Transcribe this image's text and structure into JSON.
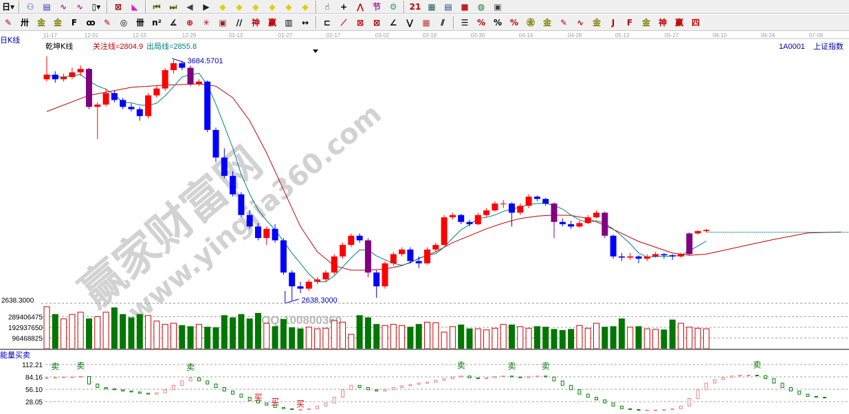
{
  "toolbar1": [
    {
      "icon": "period-day-icon",
      "glyph": "日▾",
      "color": "#000"
    },
    {
      "sep": true
    },
    {
      "icon": "indicator-icon",
      "glyph": "⚇",
      "color": "#2030c0"
    },
    {
      "icon": "notes-icon",
      "glyph": "▤",
      "color": "#2030c0"
    },
    {
      "icon": "ma3-icon",
      "glyph": "∿",
      "color": "#a020a0"
    },
    {
      "icon": "ma9-icon",
      "glyph": "∿",
      "color": "#c02080"
    },
    {
      "icon": "candle-type-icon",
      "glyph": "▯▾",
      "color": "#000"
    },
    {
      "sep": true
    },
    {
      "icon": "formula-icon",
      "glyph": "⊠",
      "color": "#a00000"
    },
    {
      "icon": "histogram-icon",
      "glyph": "◣",
      "color": "#e020c0"
    },
    {
      "sep": true
    },
    {
      "icon": "first-icon",
      "glyph": "⏮",
      "color": "#606000"
    },
    {
      "icon": "last-icon",
      "glyph": "⏭",
      "color": "#606000"
    },
    {
      "icon": "left-icon",
      "glyph": "◀",
      "color": "#404040"
    },
    {
      "icon": "right-icon",
      "glyph": "▶",
      "color": "#202020"
    },
    {
      "icon": "scroll-left-icon",
      "glyph": "◆",
      "color": "#e0d000"
    },
    {
      "icon": "scroll-right-icon",
      "glyph": "◆",
      "color": "#e0d000"
    },
    {
      "icon": "zoom-in-icon",
      "glyph": "◆",
      "color": "#e0d000"
    },
    {
      "icon": "zoom-out-icon",
      "glyph": "◆",
      "color": "#e0d000"
    },
    {
      "icon": "expand-icon",
      "glyph": "◆",
      "color": "#e0d000"
    },
    {
      "icon": "shrink-icon",
      "glyph": "◆",
      "color": "#e0d000"
    },
    {
      "sep": true
    },
    {
      "icon": "hand-icon",
      "glyph": "☝",
      "color": "#000"
    },
    {
      "icon": "crosshair-icon",
      "glyph": "+",
      "color": "#000"
    },
    {
      "icon": "trend-icon",
      "glyph": "⋀",
      "color": "#c00000"
    },
    {
      "icon": "section-icon",
      "glyph": "节",
      "color": "#a020a0"
    },
    {
      "icon": "spiral-icon",
      "glyph": "⚙",
      "color": "#20a080"
    },
    {
      "sep": true
    },
    {
      "icon": "calendar-icon",
      "glyph": "21",
      "color": "#c00000"
    },
    {
      "icon": "calculator-icon",
      "glyph": "▦",
      "color": "#206060"
    },
    {
      "icon": "report-icon",
      "glyph": "▤",
      "color": "#204080"
    },
    {
      "icon": "save-icon",
      "glyph": "■",
      "color": "#c02020"
    },
    {
      "icon": "network-icon",
      "glyph": "◍",
      "color": "#207020"
    },
    {
      "icon": "print-icon",
      "glyph": "▣",
      "color": "#404040"
    }
  ],
  "toolbar2": [
    {
      "icon": "pen-icon",
      "glyph": "✎",
      "color": "#c00000"
    },
    {
      "icon": "parallel-icon",
      "glyph": "卅",
      "color": "#000"
    },
    {
      "icon": "gold-icon",
      "glyph": "金",
      "color": "#808000"
    },
    {
      "icon": "gold2-icon",
      "glyph": "金",
      "color": "#808000"
    },
    {
      "icon": "fib-icon",
      "glyph": "F",
      "color": "#000"
    },
    {
      "icon": "wave-icon",
      "glyph": "ꝏ",
      "color": "#000"
    },
    {
      "icon": "draw-icon",
      "glyph": "✎",
      "color": "#c00000"
    },
    {
      "icon": "circle-icon",
      "glyph": "◎",
      "color": "#000"
    },
    {
      "icon": "lines-icon",
      "glyph": "卌",
      "color": "#000"
    },
    {
      "icon": "n2-icon",
      "glyph": "n²",
      "color": "#000"
    },
    {
      "icon": "angle-icon",
      "glyph": "∡",
      "color": "#000"
    },
    {
      "icon": "target-icon",
      "glyph": "⊕",
      "color": "#c00000"
    },
    {
      "icon": "radial-icon",
      "glyph": "✳",
      "color": "#c00000"
    },
    {
      "icon": "box-icon",
      "glyph": "▣",
      "color": "#a02020"
    },
    {
      "icon": "slash-icon",
      "glyph": "//",
      "color": "#000"
    },
    {
      "icon": "qian-icon",
      "glyph": "神",
      "color": "#c00000"
    },
    {
      "icon": "ying-icon",
      "glyph": "赢",
      "color": "#c00000"
    },
    {
      "icon": "grid-icon",
      "glyph": "▥",
      "color": "#000"
    },
    {
      "icon": "width-icon",
      "glyph": "↔",
      "color": "#000"
    },
    {
      "sep": true
    },
    {
      "icon": "rect-icon",
      "glyph": "⊏",
      "color": "#000"
    },
    {
      "icon": "fan-icon",
      "glyph": "⟋",
      "color": "#c00000"
    },
    {
      "icon": "fan2-icon",
      "glyph": "⊠",
      "color": "#c00000"
    },
    {
      "icon": "fan3-icon",
      "glyph": "⊠",
      "color": "#a00000"
    },
    {
      "icon": "fan4-icon",
      "glyph": "∠",
      "color": "#000"
    },
    {
      "icon": "zigzag-icon",
      "glyph": "⋁",
      "color": "#000"
    },
    {
      "icon": "gann-icon",
      "glyph": "▦",
      "color": "#c04040"
    },
    {
      "icon": "channel-icon",
      "glyph": "⫽",
      "color": "#000"
    },
    {
      "sep": true
    },
    {
      "icon": "ruler-icon",
      "glyph": "☰",
      "color": "#000"
    },
    {
      "icon": "pct-line-icon",
      "glyph": "%",
      "color": "#c00000"
    },
    {
      "icon": "percent-icon",
      "glyph": "%",
      "color": "#000"
    },
    {
      "icon": "pct-lines-icon",
      "glyph": "%",
      "color": "#c00000"
    },
    {
      "icon": "gold-circle-icon",
      "glyph": "㊎",
      "color": "#808000"
    },
    {
      "icon": "gold-lines-icon",
      "glyph": "金",
      "color": "#808000"
    },
    {
      "icon": "marker-icon",
      "glyph": "✎",
      "color": "#c00000"
    },
    {
      "icon": "sine-icon",
      "glyph": "∿",
      "color": "#c00000"
    },
    {
      "icon": "gold-bar-icon",
      "glyph": "金",
      "color": "#808000"
    },
    {
      "icon": "j-angle-icon",
      "glyph": "J",
      "color": "#c00000"
    },
    {
      "icon": "f-angle-icon",
      "glyph": "F",
      "color": "#c00000"
    },
    {
      "icon": "gold-angle-icon",
      "glyph": "金",
      "color": "#808000"
    },
    {
      "icon": "shen-angle-icon",
      "glyph": "神",
      "color": "#c00000"
    },
    {
      "icon": "ying-angle-icon",
      "glyph": "赢",
      "color": "#c00000"
    },
    {
      "icon": "si-angle-icon",
      "glyph": "四",
      "color": "#c00000"
    }
  ],
  "date_axis": [
    "11-17",
    "12-01",
    "12-15",
    "12-29",
    "01-13",
    "01-27",
    "02-17",
    "03-02",
    "03-16",
    "03-30",
    "04-14",
    "04-28",
    "05-13",
    "05-27",
    "06-10",
    "06-24",
    "07-08"
  ],
  "period_label": "日K线",
  "indicator_name": "乾坤K线",
  "focus_line": "关注线=2804.9",
  "exit_line": "出局线=2855.8",
  "stock": {
    "code": "1A0001",
    "name": "上证指数"
  },
  "watermark": {
    "site": "赢家财富网",
    "url": "www.yingjia360.com",
    "qq": "QQ:100800360"
  },
  "colors": {
    "up": "#ff0000",
    "down": "#0000ff",
    "signal": "#800080",
    "vol_up": "#cc0000",
    "vol_down": "#007700",
    "ma": "#008080",
    "long_ma": "#c00000"
  },
  "chart_data": [
    {
      "type": "candlestick",
      "high_label": "3684.5701",
      "low_label": "2638.3000",
      "ylim": [
        2638.3,
        3684.5701
      ],
      "candles_ohlc": [
        [
          3600,
          3700,
          3590,
          3620
        ],
        [
          3620,
          3635,
          3585,
          3600
        ],
        [
          3600,
          3625,
          3590,
          3610
        ],
        [
          3610,
          3650,
          3600,
          3630
        ],
        [
          3630,
          3660,
          3615,
          3645
        ],
        [
          3645,
          3650,
          3470,
          3480
        ],
        [
          3480,
          3500,
          3340,
          3490
        ],
        [
          3490,
          3560,
          3480,
          3540
        ],
        [
          3540,
          3550,
          3500,
          3510
        ],
        [
          3510,
          3520,
          3470,
          3480
        ],
        [
          3480,
          3495,
          3460,
          3470
        ],
        [
          3470,
          3480,
          3420,
          3440
        ],
        [
          3440,
          3540,
          3430,
          3530
        ],
        [
          3530,
          3570,
          3520,
          3560
        ],
        [
          3560,
          3650,
          3550,
          3640
        ],
        [
          3640,
          3684.57,
          3625,
          3670
        ],
        [
          3670,
          3680,
          3640,
          3650
        ],
        [
          3650,
          3660,
          3570,
          3580
        ],
        [
          3580,
          3600,
          3570,
          3590
        ],
        [
          3590,
          3595,
          3370,
          3380
        ],
        [
          3380,
          3390,
          3240,
          3260
        ],
        [
          3260,
          3300,
          3170,
          3180
        ],
        [
          3180,
          3200,
          3090,
          3100
        ],
        [
          3100,
          3110,
          3000,
          3010
        ],
        [
          3010,
          3030,
          2950,
          2960
        ],
        [
          2960,
          2975,
          2900,
          2910
        ],
        [
          2910,
          2960,
          2880,
          2950
        ],
        [
          2950,
          2970,
          2890,
          2900
        ],
        [
          2900,
          2910,
          2750,
          2760
        ],
        [
          2760,
          2770,
          2638.3,
          2700
        ],
        [
          2700,
          2720,
          2670,
          2690
        ],
        [
          2690,
          2730,
          2680,
          2720
        ],
        [
          2720,
          2740,
          2710,
          2730
        ],
        [
          2730,
          2770,
          2720,
          2760
        ],
        [
          2760,
          2840,
          2750,
          2830
        ],
        [
          2830,
          2890,
          2820,
          2880
        ],
        [
          2880,
          2930,
          2870,
          2920
        ],
        [
          2920,
          2930,
          2890,
          2900
        ],
        [
          2900,
          2910,
          2740,
          2760
        ],
        [
          2760,
          2770,
          2650,
          2700
        ],
        [
          2700,
          2810,
          2690,
          2800
        ],
        [
          2800,
          2850,
          2790,
          2840
        ],
        [
          2840,
          2870,
          2830,
          2860
        ],
        [
          2860,
          2870,
          2800,
          2810
        ],
        [
          2810,
          2830,
          2780,
          2800
        ],
        [
          2800,
          2870,
          2795,
          2860
        ],
        [
          2860,
          2890,
          2850,
          2880
        ],
        [
          2880,
          3010,
          2875,
          3000
        ],
        [
          3000,
          3020,
          2990,
          3010
        ],
        [
          3010,
          3015,
          2970,
          2980
        ],
        [
          2980,
          2990,
          2960,
          2970
        ],
        [
          2970,
          3020,
          2965,
          3010
        ],
        [
          3010,
          3040,
          3000,
          3030
        ],
        [
          3030,
          3070,
          3025,
          3060
        ],
        [
          3060,
          3075,
          3040,
          3060
        ],
        [
          3060,
          3065,
          2960,
          3020
        ],
        [
          3020,
          3060,
          3010,
          3050
        ],
        [
          3050,
          3100,
          3040,
          3090
        ],
        [
          3090,
          3095,
          3070,
          3080
        ],
        [
          3080,
          3085,
          3050,
          3060
        ],
        [
          3060,
          3065,
          2910,
          2980
        ],
        [
          2980,
          2995,
          2960,
          2970
        ],
        [
          2970,
          2985,
          2950,
          2960
        ],
        [
          2960,
          2985,
          2955,
          2975
        ],
        [
          2975,
          3010,
          2970,
          3000
        ],
        [
          3000,
          3030,
          2995,
          3020
        ],
        [
          3020,
          3025,
          2910,
          2920
        ],
        [
          2920,
          2925,
          2820,
          2830
        ],
        [
          2830,
          2845,
          2810,
          2825
        ],
        [
          2825,
          2845,
          2815,
          2830
        ],
        [
          2830,
          2835,
          2800,
          2820
        ],
        [
          2820,
          2840,
          2810,
          2830
        ],
        [
          2830,
          2850,
          2825,
          2840
        ],
        [
          2840,
          2845,
          2820,
          2835
        ],
        [
          2835,
          2840,
          2815,
          2830
        ],
        [
          2830,
          2845,
          2825,
          2840
        ],
        [
          2840,
          2935,
          2835,
          2930
        ],
        [
          2930,
          2945,
          2925,
          2940
        ],
        [
          2940,
          2950,
          2935,
          2945
        ]
      ],
      "signal_candles": [
        5,
        17,
        38,
        60,
        66,
        76
      ],
      "long_ma_points": [
        [
          0,
          3460
        ],
        [
          5,
          3530
        ],
        [
          10,
          3565
        ],
        [
          14,
          3575
        ],
        [
          18,
          3580
        ],
        [
          20,
          3570
        ],
        [
          22,
          3520
        ],
        [
          24,
          3420
        ],
        [
          26,
          3280
        ],
        [
          28,
          3120
        ],
        [
          30,
          2960
        ],
        [
          32,
          2850
        ],
        [
          34,
          2790
        ],
        [
          36,
          2770
        ],
        [
          38,
          2770
        ],
        [
          40,
          2775
        ],
        [
          42,
          2790
        ],
        [
          44,
          2820
        ],
        [
          46,
          2850
        ],
        [
          48,
          2890
        ],
        [
          50,
          2920
        ],
        [
          52,
          2950
        ],
        [
          54,
          2975
        ],
        [
          56,
          2995
        ],
        [
          58,
          3005
        ],
        [
          60,
          3010
        ],
        [
          62,
          3008
        ],
        [
          64,
          2995
        ],
        [
          66,
          2965
        ],
        [
          68,
          2930
        ],
        [
          70,
          2895
        ],
        [
          72,
          2870
        ],
        [
          74,
          2845
        ],
        [
          76,
          2835
        ],
        [
          78,
          2840
        ],
        [
          82,
          2872
        ],
        [
          86,
          2904
        ],
        [
          90,
          2932
        ],
        [
          94,
          2936
        ]
      ],
      "extension_level": 2935
    },
    {
      "type": "bar",
      "name": "volume",
      "ticks": [
        "289406475",
        "192937650",
        "96468825"
      ],
      "tick_values": [
        289406475,
        192937650,
        96468825
      ],
      "price_line_label": "2638.3000",
      "values": [
        380000000.0,
        310000000.0,
        270000000.0,
        310000000.0,
        330000000.0,
        270000000.0,
        290000000.0,
        330000000.0,
        370000000.0,
        310000000.0,
        280000000.0,
        310000000.0,
        300000000.0,
        250000000.0,
        220000000.0,
        230000000.0,
        210000000.0,
        200000000.0,
        220000000.0,
        195000000.0,
        190000000.0,
        300000000.0,
        280000000.0,
        310000000.0,
        270000000.0,
        320000000.0,
        230000000.0,
        200000000.0,
        265000000.0,
        190000000.0,
        180000000.0,
        195000000.0,
        180000000.0,
        185000000.0,
        255000000.0,
        240000000.0,
        130000000.0,
        300000000.0,
        280000000.0,
        220000000.0,
        210000000.0,
        220000000.0,
        210000000.0,
        195000000.0,
        220000000.0,
        240000000.0,
        235000000.0,
        150000000.0,
        200000000.0,
        215000000.0,
        180000000.0,
        180000000.0,
        170000000.0,
        185000000.0,
        220000000.0,
        215000000.0,
        200000000.0,
        185000000.0,
        200000000.0,
        195000000.0,
        175000000.0,
        165000000.0,
        175000000.0,
        210000000.0,
        185000000.0,
        230000000.0,
        195000000.0,
        200000000.0,
        270000000.0,
        195000000.0,
        200000000.0,
        180000000.0,
        175000000.0,
        170000000.0,
        260000000.0,
        230000000.0,
        195000000.0,
        185000000.0,
        180000000.0
      ]
    },
    {
      "type": "bar",
      "title": "能量买卖",
      "ticks": [
        "112.21",
        "84.16",
        "56.10",
        "28.05"
      ],
      "tick_values": [
        112.21,
        84.16,
        56.1,
        28.05
      ],
      "values": [
        82,
        83,
        84,
        84,
        85,
        68,
        60,
        57,
        55,
        52,
        50,
        47,
        45,
        48,
        55,
        65,
        75,
        82,
        75,
        68,
        60,
        52,
        45,
        38,
        30,
        25,
        20,
        15,
        12,
        10,
        10,
        12,
        18,
        25,
        38,
        55,
        65,
        60,
        55,
        52,
        55,
        60,
        64,
        67,
        70,
        72,
        76,
        80,
        84,
        86,
        82,
        80,
        82,
        85,
        86,
        84,
        82,
        85,
        86,
        84,
        75,
        65,
        55,
        45,
        38,
        32,
        25,
        18,
        12,
        10,
        9,
        9,
        9,
        10,
        12,
        18,
        35,
        55,
        70,
        78,
        83,
        86,
        88,
        88,
        87,
        80,
        70,
        60,
        52,
        45,
        40,
        38,
        37
      ],
      "sell_label": "卖",
      "buy_label": "买",
      "sell_signals": [
        1,
        4,
        17,
        49,
        55,
        59,
        84
      ],
      "buy_signals": [
        25,
        27,
        30
      ]
    }
  ]
}
